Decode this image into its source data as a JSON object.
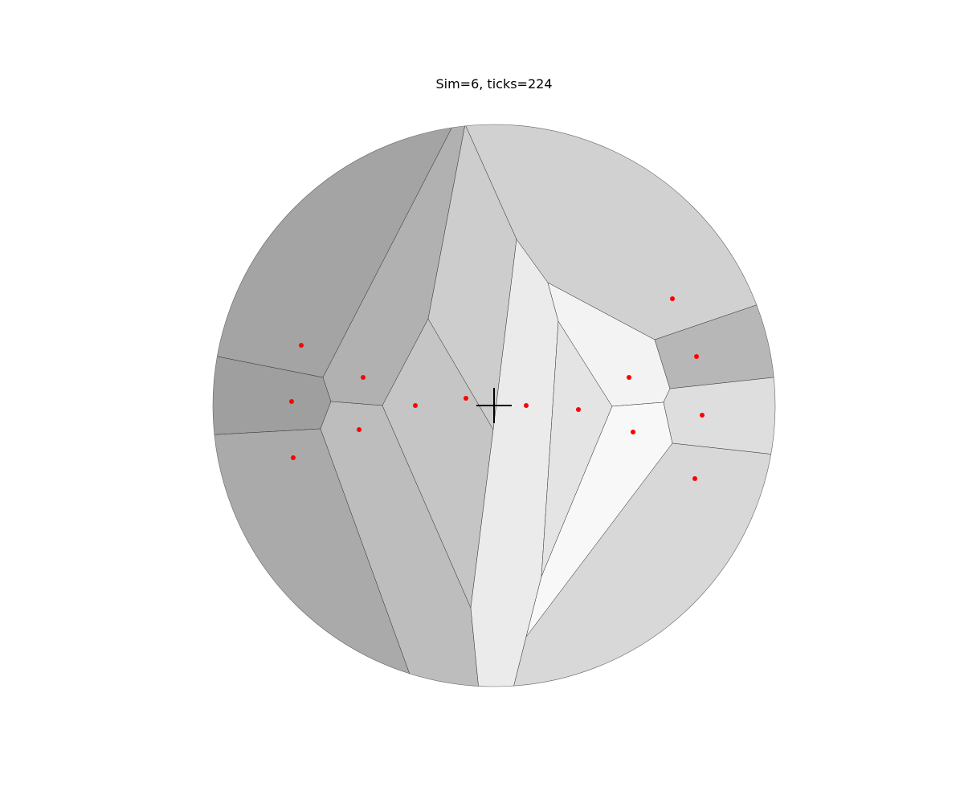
{
  "title": "Sim=6, ticks=224",
  "colors": {
    "background": "#ffffff",
    "cell_edge": "#333333",
    "point": "#ff0000",
    "marker": "#000000"
  },
  "cells": [
    {
      "name": "cell-top-left",
      "fill": "#a4a4a4"
    },
    {
      "name": "cell-left-mid",
      "fill": "#9f9f9f"
    },
    {
      "name": "cell-bottom-left",
      "fill": "#aaaaaa"
    },
    {
      "name": "cell-upper-left-inner",
      "fill": "#b1b1b1"
    },
    {
      "name": "cell-lower-left-inner",
      "fill": "#bdbdbd"
    },
    {
      "name": "cell-left-center",
      "fill": "#c5c5c5"
    },
    {
      "name": "cell-center",
      "fill": "#cdcdcd"
    },
    {
      "name": "cell-center-right",
      "fill": "#ebebeb"
    },
    {
      "name": "cell-right-inner",
      "fill": "#e4e4e4"
    },
    {
      "name": "cell-upper-right-inner",
      "fill": "#f3f3f3"
    },
    {
      "name": "cell-lower-right-inner",
      "fill": "#f8f8f8"
    },
    {
      "name": "cell-top-right",
      "fill": "#d1d1d1"
    },
    {
      "name": "cell-right-upper",
      "fill": "#b7b7b7"
    },
    {
      "name": "cell-right-mid",
      "fill": "#dedede"
    },
    {
      "name": "cell-bottom-right",
      "fill": "#d8d8d8"
    }
  ],
  "points_count": 15
}
